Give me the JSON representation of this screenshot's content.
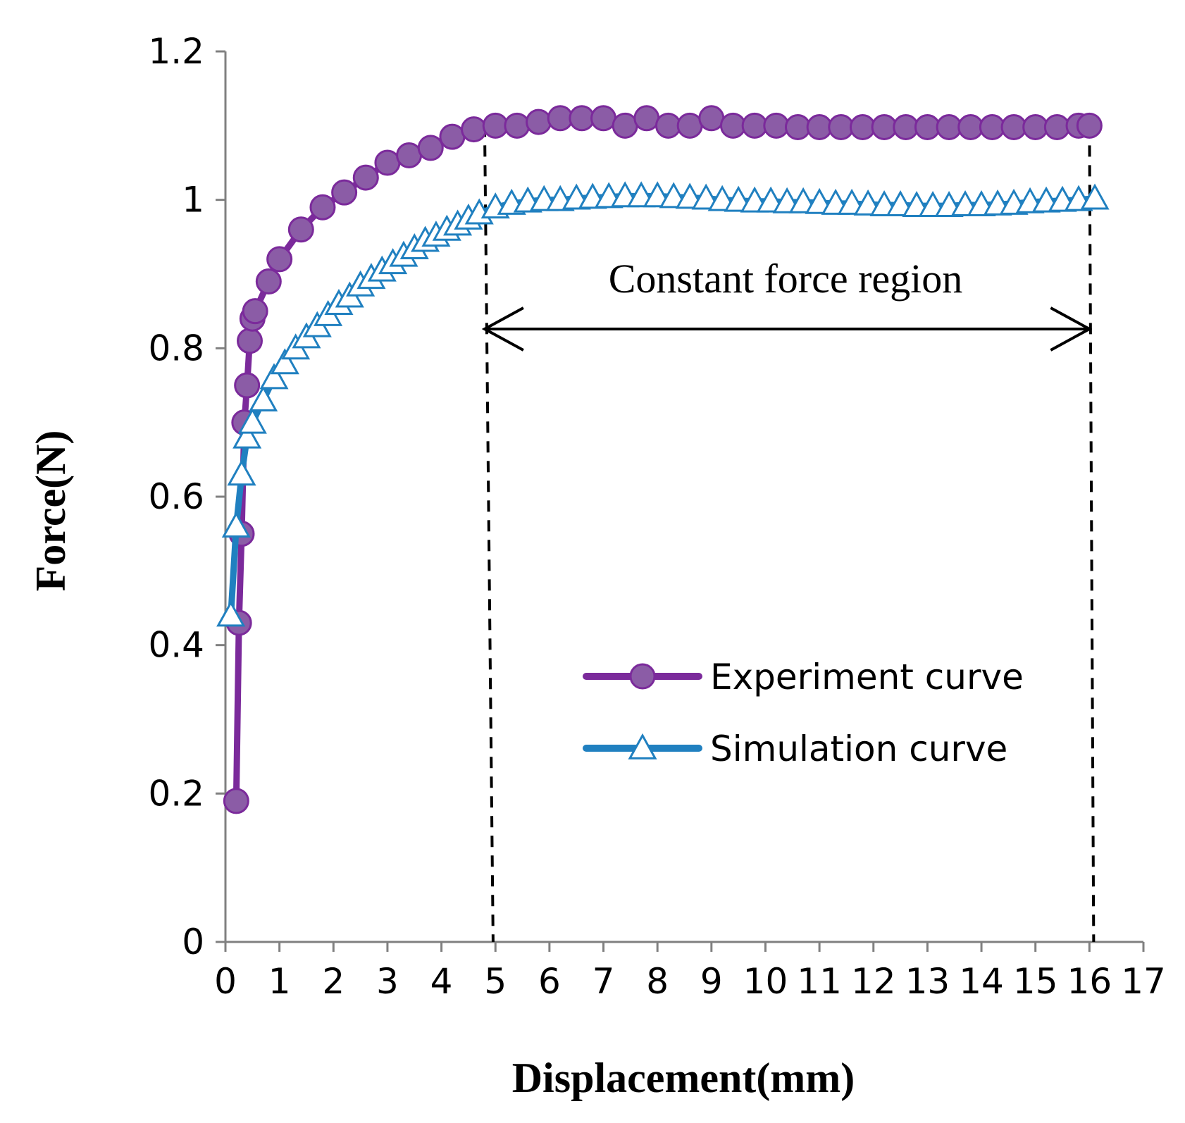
{
  "chart_data": {
    "type": "line",
    "title": "",
    "xlabel": "Displacement(mm)",
    "ylabel": "Force(N)",
    "xlim": [
      0,
      17
    ],
    "ylim": [
      0,
      1.2
    ],
    "x_ticks": [
      "0",
      "1",
      "2",
      "3",
      "4",
      "5",
      "6",
      "7",
      "8",
      "9",
      "10",
      "11",
      "12",
      "13",
      "14",
      "15",
      "16",
      "17"
    ],
    "y_ticks": [
      "0",
      "0.2",
      "0.4",
      "0.6",
      "0.8",
      "1",
      "1.2"
    ],
    "grid": false,
    "legend_position": "lower-right",
    "annotation": {
      "text": "Constant force region",
      "x_start": 4.8,
      "x_end": 16,
      "arrow_y": 0.826
    },
    "colors": {
      "experiment": "#7B2A9B",
      "experiment_marker_fill": "#8B5CA6",
      "simulation": "#2080C0",
      "axis": "#808080"
    },
    "series": [
      {
        "name": "Experiment curve",
        "marker": "circle",
        "points": [
          [
            0.2,
            0.19
          ],
          [
            0.25,
            0.43
          ],
          [
            0.3,
            0.55
          ],
          [
            0.35,
            0.7
          ],
          [
            0.4,
            0.75
          ],
          [
            0.45,
            0.81
          ],
          [
            0.5,
            0.84
          ],
          [
            0.55,
            0.85
          ],
          [
            0.8,
            0.89
          ],
          [
            1.0,
            0.92
          ],
          [
            1.4,
            0.96
          ],
          [
            1.8,
            0.99
          ],
          [
            2.2,
            1.01
          ],
          [
            2.6,
            1.03
          ],
          [
            3.0,
            1.05
          ],
          [
            3.4,
            1.06
          ],
          [
            3.8,
            1.07
          ],
          [
            4.2,
            1.085
          ],
          [
            4.6,
            1.095
          ],
          [
            5.0,
            1.1
          ],
          [
            5.4,
            1.1
          ],
          [
            5.8,
            1.105
          ],
          [
            6.2,
            1.11
          ],
          [
            6.6,
            1.11
          ],
          [
            7.0,
            1.11
          ],
          [
            7.4,
            1.1
          ],
          [
            7.8,
            1.11
          ],
          [
            8.2,
            1.1
          ],
          [
            8.6,
            1.1
          ],
          [
            9.0,
            1.11
          ],
          [
            9.4,
            1.1
          ],
          [
            9.8,
            1.1
          ],
          [
            10.2,
            1.1
          ],
          [
            10.6,
            1.098
          ],
          [
            11.0,
            1.098
          ],
          [
            11.4,
            1.098
          ],
          [
            11.8,
            1.098
          ],
          [
            12.2,
            1.098
          ],
          [
            12.6,
            1.098
          ],
          [
            13.0,
            1.098
          ],
          [
            13.4,
            1.098
          ],
          [
            13.8,
            1.098
          ],
          [
            14.2,
            1.098
          ],
          [
            14.6,
            1.098
          ],
          [
            15.0,
            1.098
          ],
          [
            15.4,
            1.098
          ],
          [
            15.8,
            1.1
          ],
          [
            16.0,
            1.1
          ]
        ]
      },
      {
        "name": "Simulation curve",
        "marker": "triangle",
        "points": [
          [
            0.1,
            0.44
          ],
          [
            0.2,
            0.56
          ],
          [
            0.3,
            0.63
          ],
          [
            0.4,
            0.68
          ],
          [
            0.5,
            0.7
          ],
          [
            0.7,
            0.73
          ],
          [
            0.9,
            0.76
          ],
          [
            1.1,
            0.78
          ],
          [
            1.3,
            0.8
          ],
          [
            1.5,
            0.815
          ],
          [
            1.7,
            0.83
          ],
          [
            1.9,
            0.845
          ],
          [
            2.1,
            0.86
          ],
          [
            2.3,
            0.87
          ],
          [
            2.5,
            0.885
          ],
          [
            2.7,
            0.895
          ],
          [
            2.9,
            0.905
          ],
          [
            3.1,
            0.915
          ],
          [
            3.3,
            0.925
          ],
          [
            3.5,
            0.935
          ],
          [
            3.7,
            0.945
          ],
          [
            3.9,
            0.952
          ],
          [
            4.1,
            0.96
          ],
          [
            4.3,
            0.967
          ],
          [
            4.5,
            0.975
          ],
          [
            4.7,
            0.982
          ],
          [
            5.0,
            0.99
          ],
          [
            5.3,
            0.995
          ],
          [
            5.6,
            0.998
          ],
          [
            5.9,
            1.0
          ],
          [
            6.2,
            1.0
          ],
          [
            6.5,
            1.002
          ],
          [
            6.8,
            1.003
          ],
          [
            7.1,
            1.004
          ],
          [
            7.4,
            1.005
          ],
          [
            7.7,
            1.005
          ],
          [
            8.0,
            1.005
          ],
          [
            8.3,
            1.004
          ],
          [
            8.6,
            1.003
          ],
          [
            8.9,
            1.002
          ],
          [
            9.2,
            1.0
          ],
          [
            9.5,
            0.999
          ],
          [
            9.8,
            0.998
          ],
          [
            10.1,
            0.998
          ],
          [
            10.4,
            0.997
          ],
          [
            10.7,
            0.997
          ],
          [
            11.0,
            0.996
          ],
          [
            11.3,
            0.995
          ],
          [
            11.6,
            0.995
          ],
          [
            11.9,
            0.994
          ],
          [
            12.2,
            0.993
          ],
          [
            12.5,
            0.993
          ],
          [
            12.8,
            0.992
          ],
          [
            13.1,
            0.992
          ],
          [
            13.4,
            0.992
          ],
          [
            13.7,
            0.993
          ],
          [
            14.0,
            0.993
          ],
          [
            14.3,
            0.994
          ],
          [
            14.6,
            0.995
          ],
          [
            14.9,
            0.997
          ],
          [
            15.2,
            0.998
          ],
          [
            15.5,
            0.999
          ],
          [
            15.8,
            1.0
          ],
          [
            16.1,
            1.002
          ]
        ]
      }
    ]
  }
}
